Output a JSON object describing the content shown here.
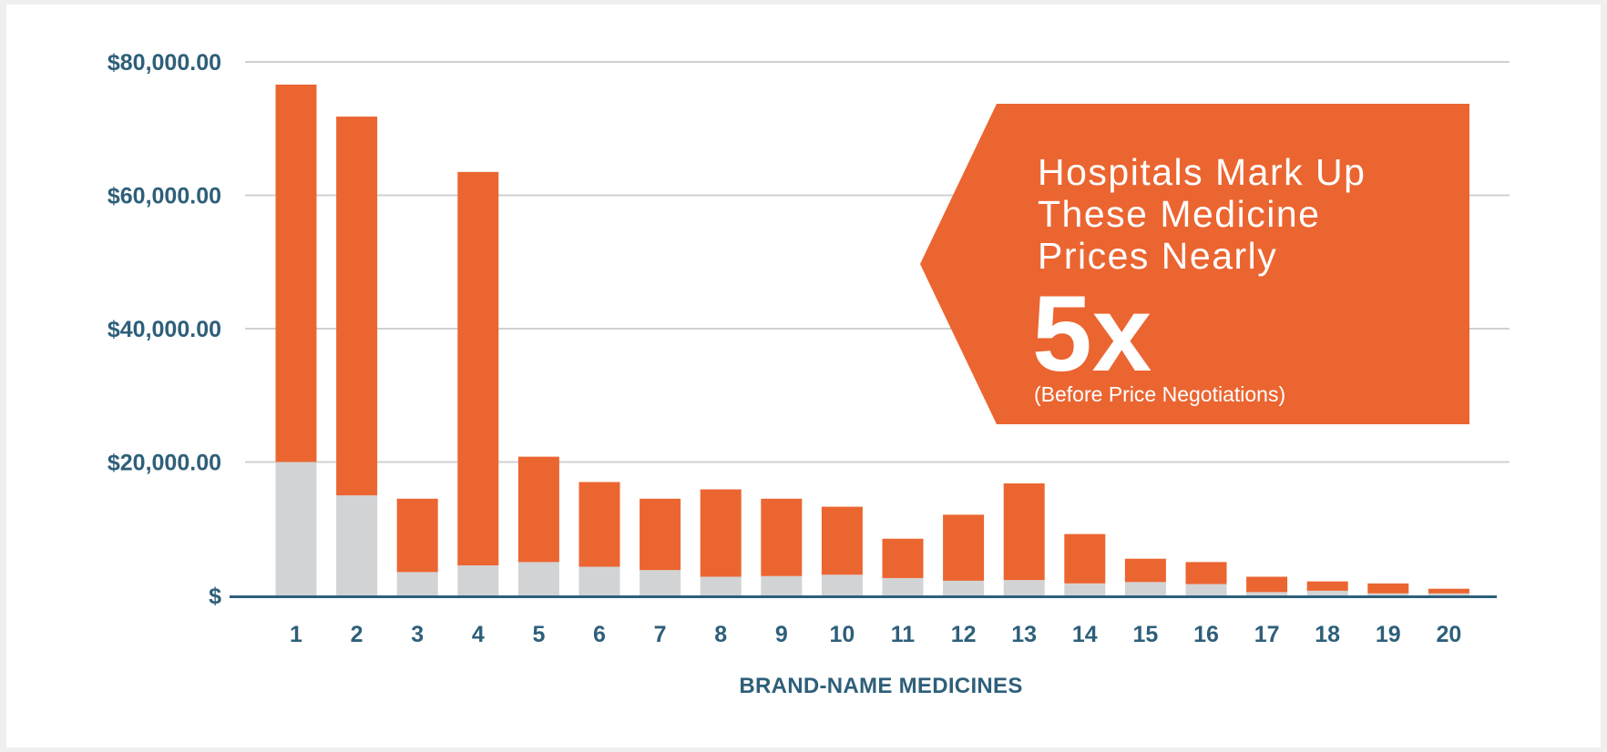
{
  "colors": {
    "markup": "#eb6531",
    "base": "#d2d3d5",
    "axis": "#2e5f7a",
    "grid": "#cfd0d2"
  },
  "chart_data": {
    "type": "bar",
    "stacked": true,
    "xlabel": "BRAND-NAME MEDICINES",
    "ylabel": "",
    "ylim": [
      0,
      80000
    ],
    "yticks": [
      {
        "value": 0,
        "label": "$"
      },
      {
        "value": 20000,
        "label": "$20,000.00"
      },
      {
        "value": 40000,
        "label": "$40,000.00"
      },
      {
        "value": 60000,
        "label": "$60,000.00"
      },
      {
        "value": 80000,
        "label": "$80,000.00"
      }
    ],
    "grid": true,
    "categories": [
      "1",
      "2",
      "3",
      "4",
      "5",
      "6",
      "7",
      "8",
      "9",
      "10",
      "11",
      "12",
      "13",
      "14",
      "15",
      "16",
      "17",
      "18",
      "19",
      "20"
    ],
    "series": [
      {
        "color_key": "base",
        "values": [
          20000,
          15000,
          3500,
          4500,
          5000,
          4300,
          3800,
          2800,
          2900,
          3100,
          2600,
          2200,
          2300,
          1800,
          2000,
          1700,
          500,
          700,
          300,
          300
        ]
      },
      {
        "color_key": "markup",
        "values": [
          56600,
          56800,
          11000,
          59000,
          15800,
          12700,
          10700,
          13100,
          11600,
          10200,
          5900,
          9900,
          14500,
          7400,
          3500,
          3300,
          2300,
          1400,
          1500,
          700
        ]
      }
    ],
    "callout": {
      "lines": [
        "Hospitals Mark Up",
        "These Medicine",
        "Prices Nearly"
      ],
      "emphasis": "5x",
      "note": "(Before Price Negotiations)"
    }
  }
}
